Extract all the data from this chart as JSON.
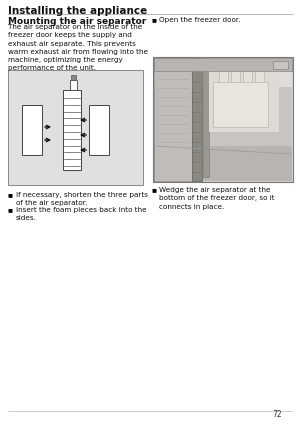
{
  "title": "Installing the appliance",
  "section_title": "Mounting the air separator",
  "body_text": "The air separator on the inside of the\nfreezer door keeps the supply and\nexhaust air separate. This prevents\nwarm exhaust air from flowing into the\nmachine, optimizing the energy\nperformance of the unit.",
  "bullet1": "If necessary, shorten the three parts\nof the air separator.",
  "bullet2": "Insert the foam pieces back into the\nsides.",
  "right_bullet1": "Open the freezer door.",
  "right_bullet2": "Wedge the air separator at the\nbottom of the freezer door, so it\nconnects in place.",
  "page_num": "72",
  "bg_color": "#ffffff",
  "text_color": "#111111",
  "title_fontsize": 7.5,
  "section_fontsize": 6.5,
  "body_fontsize": 5.2,
  "bullet_fontsize": 5.2,
  "diagram_bg": "#e0e0e0",
  "photo_bg": "#d4d0cc"
}
